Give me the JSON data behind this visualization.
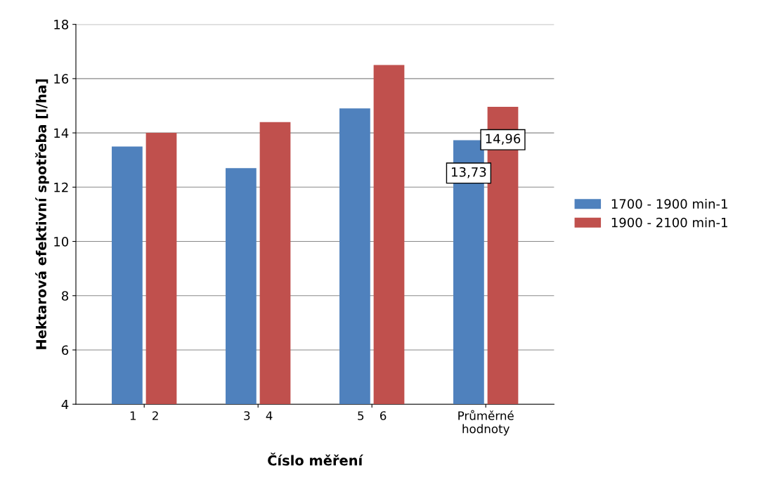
{
  "chart_data": {
    "type": "bar",
    "xlabel": "Číslo měření",
    "ylabel": "Hektarová efektivní spotřeba [l/ha]",
    "categories": [
      "1    2",
      "3    4",
      "5    6",
      "Průměrné\nhodnoty"
    ],
    "series": [
      {
        "name": "1700 - 1900 min-1",
        "color": "#4f81bd",
        "values": [
          13.5,
          12.7,
          14.9,
          13.73
        ],
        "value_labels": [
          null,
          null,
          null,
          "13,73"
        ]
      },
      {
        "name": "1900 - 2100 min-1",
        "color": "#c0504d",
        "values": [
          14.0,
          14.4,
          16.5,
          14.96
        ],
        "value_labels": [
          null,
          null,
          null,
          "14,96"
        ]
      }
    ],
    "ylim": [
      4,
      18
    ],
    "yticks": [
      4,
      6,
      8,
      10,
      12,
      14,
      16,
      18
    ],
    "grid": "y",
    "legend": "right"
  }
}
